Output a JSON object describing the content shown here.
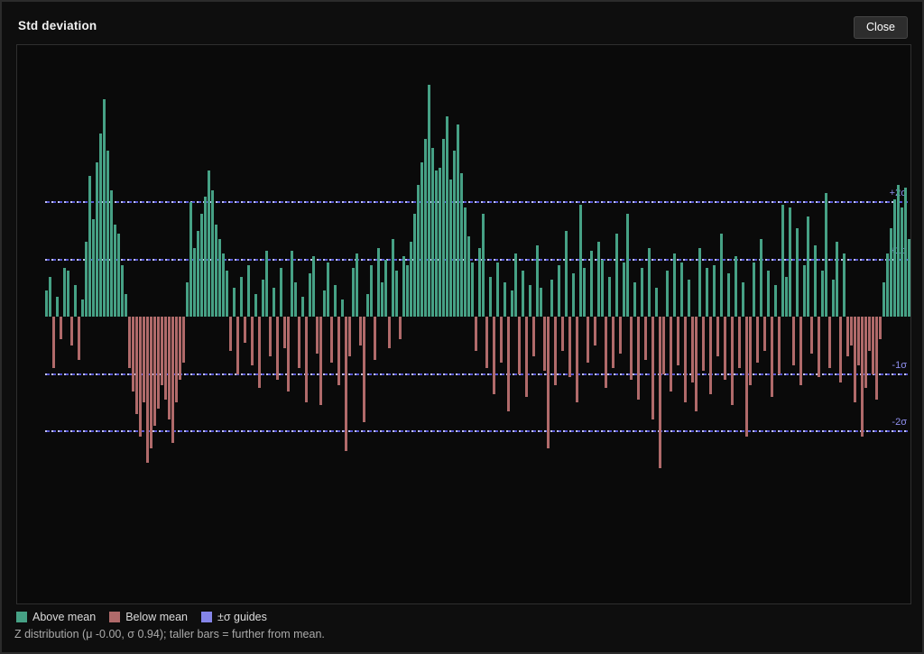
{
  "header": {
    "title": "Std deviation",
    "close_label": "Close"
  },
  "legend": [
    {
      "name": "above-mean",
      "label": "Above mean",
      "color": "#46a185"
    },
    {
      "name": "below-mean",
      "label": "Below mean",
      "color": "#b06a6a"
    },
    {
      "name": "sigma-guides",
      "label": "±σ guides",
      "color": "#8585e8"
    }
  ],
  "caption": "Z distribution (μ -0.00, σ 0.94); taller bars = further from mean.",
  "colors": {
    "above": "#46a185",
    "below": "#b06a6a",
    "guide": "#8585e8",
    "guide_label": "#8f8fee",
    "panel_bg": "#0a0a0a",
    "page_bg": "#0e0e0e"
  },
  "chart_data": {
    "type": "bar",
    "title": "Std deviation",
    "subtitle": "Z distribution (μ -0.00, σ 0.94); taller bars = further from mean.",
    "mu": "-0.00",
    "sigma": "0.94",
    "unit": "z-score (σ)",
    "ylim": [
      -3.2,
      4.4
    ],
    "grid": false,
    "legend_position": "bottom",
    "guides": [
      {
        "label": "+2σ",
        "z": 2
      },
      {
        "label": "+1σ",
        "z": 1
      },
      {
        "label": "-1σ",
        "z": -1
      },
      {
        "label": "-2σ",
        "z": -2
      }
    ],
    "values": [
      0.45,
      0.7,
      -0.9,
      0.35,
      -0.4,
      0.85,
      0.8,
      -0.5,
      0.55,
      -0.75,
      0.3,
      1.3,
      2.45,
      1.7,
      2.7,
      3.2,
      3.8,
      2.9,
      2.2,
      1.6,
      1.45,
      0.9,
      0.4,
      -0.9,
      -1.3,
      -1.7,
      -2.1,
      -1.5,
      -2.55,
      -2.3,
      -1.9,
      -1.6,
      -1.2,
      -1.45,
      -1.8,
      -2.2,
      -1.5,
      -1.1,
      -0.8,
      0.6,
      2.0,
      1.2,
      1.5,
      1.8,
      2.1,
      2.55,
      2.2,
      1.6,
      1.35,
      1.1,
      0.8,
      -0.6,
      0.5,
      -1.0,
      0.7,
      -0.45,
      0.9,
      -0.85,
      0.4,
      -1.25,
      0.65,
      1.15,
      -0.7,
      0.5,
      -1.1,
      0.85,
      -0.55,
      -1.3,
      1.15,
      0.6,
      -0.9,
      0.35,
      -1.5,
      0.75,
      1.05,
      -0.65,
      -1.55,
      0.45,
      0.95,
      -0.8,
      0.55,
      -1.2,
      0.3,
      -2.35,
      -0.7,
      0.85,
      1.1,
      -0.5,
      -1.85,
      0.4,
      0.9,
      -0.75,
      1.2,
      0.6,
      1.0,
      -0.55,
      1.35,
      0.8,
      -0.4,
      1.05,
      0.9,
      1.3,
      1.8,
      2.3,
      2.7,
      3.1,
      4.05,
      2.95,
      2.55,
      2.6,
      3.1,
      3.5,
      2.4,
      2.9,
      3.35,
      2.5,
      1.9,
      1.4,
      0.95,
      -0.6,
      1.2,
      1.8,
      -0.9,
      0.7,
      -1.35,
      0.95,
      -0.8,
      0.6,
      -1.65,
      0.45,
      1.1,
      -1.0,
      0.8,
      -1.4,
      0.55,
      -0.7,
      1.25,
      0.5,
      -0.95,
      -2.3,
      0.65,
      -1.2,
      0.9,
      -0.6,
      1.5,
      -1.05,
      0.75,
      -1.5,
      1.95,
      0.85,
      -0.8,
      1.15,
      -0.5,
      1.3,
      1.0,
      -1.25,
      0.7,
      -0.9,
      1.45,
      -0.65,
      0.95,
      1.8,
      -1.1,
      0.6,
      -1.45,
      0.85,
      -0.75,
      1.2,
      -1.8,
      0.5,
      -2.65,
      -1.0,
      0.8,
      -1.3,
      1.1,
      -0.85,
      0.95,
      -1.5,
      0.65,
      -1.15,
      -1.65,
      1.2,
      -0.95,
      0.85,
      -1.35,
      0.9,
      -0.7,
      1.45,
      -1.1,
      0.75,
      -1.55,
      1.05,
      -0.9,
      0.6,
      -2.1,
      -1.2,
      0.95,
      -0.8,
      1.35,
      -0.6,
      0.8,
      -1.4,
      0.55,
      -1.0,
      1.95,
      0.7,
      1.9,
      -0.85,
      1.55,
      -1.2,
      0.9,
      1.75,
      -0.65,
      1.25,
      -1.05,
      0.8,
      2.15,
      -0.9,
      0.65,
      1.3,
      -1.15,
      1.1,
      -0.7,
      -0.5,
      -1.5,
      -0.85,
      -2.1,
      -1.25,
      -0.6,
      -1.0,
      -1.45,
      -0.4,
      0.6,
      1.1,
      1.55,
      2.05,
      2.3,
      1.9,
      2.25,
      1.35
    ]
  }
}
